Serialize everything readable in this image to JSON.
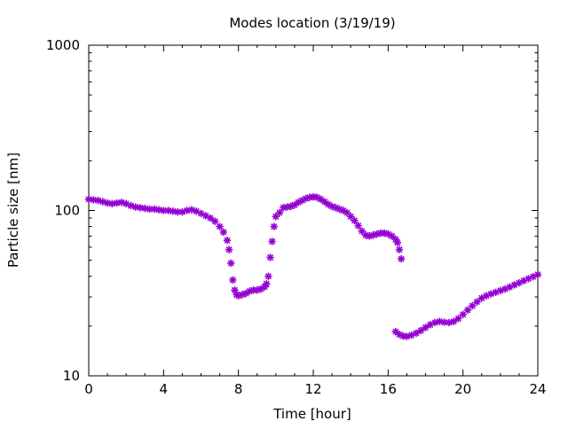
{
  "chart_data": {
    "type": "scatter",
    "title": "Modes location (3/19/19)",
    "xlabel": "Time [hour]",
    "ylabel": "Particle size [nm]",
    "xlim": [
      0,
      24
    ],
    "ylim": [
      10,
      1000
    ],
    "yscale": "log",
    "xticks": [
      0,
      4,
      8,
      12,
      16,
      20,
      24
    ],
    "yticks": [
      10,
      100,
      1000
    ],
    "grid": false,
    "legend": "none",
    "marker": "asterisk",
    "color": "#9400d3",
    "series": [
      {
        "x": [
          0.0,
          0.25,
          0.5,
          0.75,
          1.0,
          1.25,
          1.5,
          1.75,
          2.0,
          2.25,
          2.5,
          2.75,
          3.0,
          3.25,
          3.5,
          3.75,
          4.0,
          4.25,
          4.5,
          4.75,
          5.0,
          5.25,
          5.5,
          5.75,
          6.0,
          6.25,
          6.5,
          6.75,
          7.0,
          7.2,
          7.4,
          7.5,
          7.6,
          7.7,
          7.8,
          7.9,
          8.0,
          8.2,
          8.4,
          8.6,
          8.8,
          9.0,
          9.2,
          9.4,
          9.5,
          9.6,
          9.7,
          9.8,
          9.9,
          10.0,
          10.2,
          10.4,
          10.6,
          10.8,
          11.0,
          11.2,
          11.4,
          11.6,
          11.8,
          12.0,
          12.2,
          12.4,
          12.6,
          12.8,
          13.0,
          13.2,
          13.4,
          13.6,
          13.8,
          14.0,
          14.2,
          14.4,
          14.6,
          14.8,
          15.0,
          15.2,
          15.4,
          15.6,
          15.8,
          16.0,
          16.2,
          16.4,
          16.5,
          16.6,
          16.7
        ],
        "y": [
          117,
          116,
          115,
          113,
          111,
          110,
          111,
          112,
          110,
          107,
          105,
          104,
          103,
          102,
          102,
          101,
          100,
          100,
          99,
          98,
          98,
          100,
          101,
          99,
          96,
          93,
          90,
          86,
          80,
          74,
          66,
          58,
          48,
          38,
          33,
          31,
          30.5,
          31,
          31.5,
          32.5,
          33,
          33,
          33.5,
          34.5,
          36,
          40,
          52,
          65,
          80,
          92,
          97,
          104,
          105,
          106,
          108,
          112,
          115,
          118,
          120,
          121,
          120,
          117,
          113,
          109,
          106,
          104,
          102,
          100,
          97,
          92,
          87,
          81,
          75,
          71,
          70,
          71,
          72,
          73,
          73,
          72,
          70,
          67,
          64,
          58,
          51
        ]
      },
      {
        "x": [
          16.4,
          16.6,
          16.8,
          17.0,
          17.25,
          17.5,
          17.75,
          18.0,
          18.25,
          18.5,
          18.75,
          19.0,
          19.25,
          19.5,
          19.75,
          20.0,
          20.25,
          20.5,
          20.75,
          21.0,
          21.25,
          21.5,
          21.75,
          22.0,
          22.25,
          22.5,
          22.75,
          23.0,
          23.25,
          23.5,
          23.75,
          24.0
        ],
        "y": [
          18.5,
          17.8,
          17.4,
          17.3,
          17.6,
          18.1,
          18.8,
          19.6,
          20.4,
          21.0,
          21.3,
          21.1,
          21.0,
          21.3,
          22.2,
          23.5,
          25.0,
          26.5,
          28.0,
          29.5,
          30.5,
          31.3,
          32.0,
          32.8,
          33.5,
          34.4,
          35.5,
          36.5,
          37.6,
          38.7,
          39.8,
          41.0
        ]
      }
    ]
  }
}
